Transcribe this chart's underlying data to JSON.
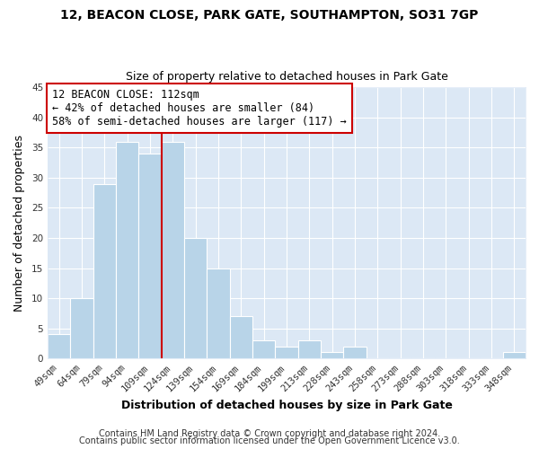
{
  "title": "12, BEACON CLOSE, PARK GATE, SOUTHAMPTON, SO31 7GP",
  "subtitle": "Size of property relative to detached houses in Park Gate",
  "xlabel": "Distribution of detached houses by size in Park Gate",
  "ylabel": "Number of detached properties",
  "bar_color": "#b8d4e8",
  "bar_edge_color": "#ffffff",
  "bin_labels": [
    "49sqm",
    "64sqm",
    "79sqm",
    "94sqm",
    "109sqm",
    "124sqm",
    "139sqm",
    "154sqm",
    "169sqm",
    "184sqm",
    "199sqm",
    "213sqm",
    "228sqm",
    "243sqm",
    "258sqm",
    "273sqm",
    "288sqm",
    "303sqm",
    "318sqm",
    "333sqm",
    "348sqm"
  ],
  "bar_heights": [
    4,
    10,
    29,
    36,
    34,
    36,
    20,
    15,
    7,
    3,
    2,
    3,
    1,
    2,
    0,
    0,
    0,
    0,
    0,
    0,
    1
  ],
  "ylim": [
    0,
    45
  ],
  "yticks": [
    0,
    5,
    10,
    15,
    20,
    25,
    30,
    35,
    40,
    45
  ],
  "vline_x": 4.5,
  "vline_color": "#cc0000",
  "annotation_text": "12 BEACON CLOSE: 112sqm\n← 42% of detached houses are smaller (84)\n58% of semi-detached houses are larger (117) →",
  "annotation_box_color": "#ffffff",
  "annotation_box_edge": "#cc0000",
  "footer_line1": "Contains HM Land Registry data © Crown copyright and database right 2024.",
  "footer_line2": "Contains public sector information licensed under the Open Government Licence v3.0.",
  "background_color": "#ffffff",
  "plot_bg_color": "#dce8f5",
  "grid_color": "#ffffff",
  "title_fontsize": 10,
  "subtitle_fontsize": 9,
  "axis_label_fontsize": 9,
  "tick_fontsize": 7.5,
  "annotation_fontsize": 8.5,
  "footer_fontsize": 7
}
